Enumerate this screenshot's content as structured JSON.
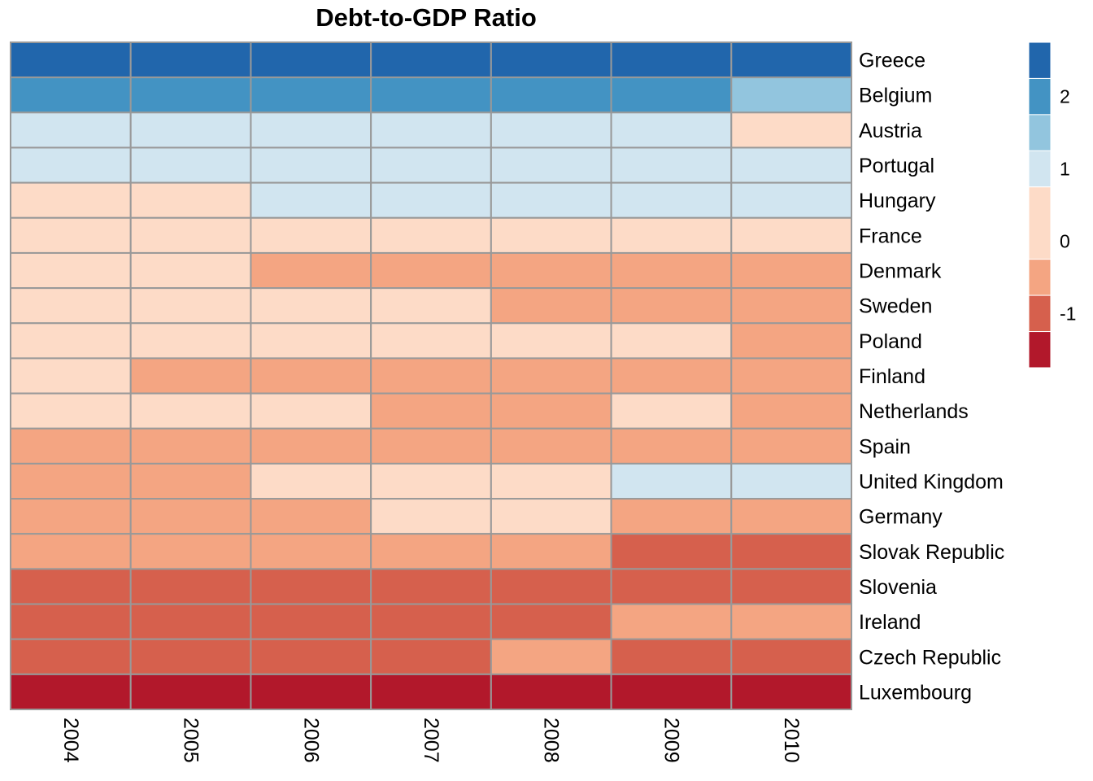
{
  "chart_data": {
    "type": "heatmap",
    "title": "Debt-to-GDP Ratio",
    "columns": [
      "2004",
      "2005",
      "2006",
      "2007",
      "2008",
      "2009",
      "2010"
    ],
    "rows": [
      "Greece",
      "Belgium",
      "Austria",
      "Portugal",
      "Hungary",
      "France",
      "Denmark",
      "Sweden",
      "Poland",
      "Finland",
      "Netherlands",
      "Spain",
      "United Kingdom",
      "Germany",
      "Slovak Republic",
      "Slovenia",
      "Ireland",
      "Czech Republic",
      "Luxembourg"
    ],
    "values": [
      [
        2.5,
        2.5,
        2.5,
        2.5,
        2.5,
        2.5,
        2.5
      ],
      [
        2.0,
        2.0,
        2.0,
        2.0,
        2.0,
        2.0,
        1.5
      ],
      [
        1.0,
        1.0,
        1.0,
        1.0,
        1.0,
        1.0,
        0.0
      ],
      [
        1.0,
        1.0,
        1.0,
        1.0,
        1.0,
        1.0,
        1.0
      ],
      [
        0.0,
        0.0,
        1.0,
        1.0,
        1.0,
        1.0,
        1.0
      ],
      [
        0.0,
        0.0,
        0.0,
        0.0,
        0.0,
        0.0,
        0.0
      ],
      [
        0.0,
        0.0,
        -0.5,
        -0.5,
        -0.5,
        -0.5,
        -0.5
      ],
      [
        0.0,
        0.0,
        0.0,
        0.0,
        -0.5,
        -0.5,
        -0.5
      ],
      [
        0.0,
        0.0,
        0.0,
        0.0,
        0.0,
        0.0,
        -0.5
      ],
      [
        0.0,
        -0.5,
        -0.5,
        -0.5,
        -0.5,
        -0.5,
        -0.5
      ],
      [
        0.0,
        0.0,
        0.0,
        -0.5,
        -0.5,
        0.0,
        -0.5
      ],
      [
        -0.5,
        -0.5,
        -0.5,
        -0.5,
        -0.5,
        -0.5,
        -0.5
      ],
      [
        -0.5,
        -0.5,
        0.0,
        0.0,
        0.0,
        1.0,
        1.0
      ],
      [
        -0.5,
        -0.5,
        -0.5,
        0.0,
        0.0,
        -0.5,
        -0.5
      ],
      [
        -0.5,
        -0.5,
        -0.5,
        -0.5,
        -0.5,
        -1.0,
        -1.0
      ],
      [
        -1.0,
        -1.0,
        -1.0,
        -1.0,
        -1.0,
        -1.0,
        -1.0
      ],
      [
        -1.0,
        -1.0,
        -1.0,
        -1.0,
        -1.0,
        -0.5,
        -0.5
      ],
      [
        -1.0,
        -1.0,
        -1.0,
        -1.0,
        -0.5,
        -1.0,
        -1.0
      ],
      [
        -1.5,
        -1.5,
        -1.5,
        -1.5,
        -1.5,
        -1.5,
        -1.5
      ]
    ],
    "color_scale": {
      "bins": [
        {
          "min": 2.25,
          "max": 2.75,
          "color": "#2166AC"
        },
        {
          "min": 1.75,
          "max": 2.25,
          "color": "#4393C3"
        },
        {
          "min": 1.25,
          "max": 1.75,
          "color": "#92C5DE"
        },
        {
          "min": 0.75,
          "max": 1.25,
          "color": "#D1E5F0"
        },
        {
          "min": -0.25,
          "max": 0.75,
          "color": "#FDDBC7"
        },
        {
          "min": -0.75,
          "max": -0.25,
          "color": "#F4A582"
        },
        {
          "min": -1.25,
          "max": -0.75,
          "color": "#D6604D"
        },
        {
          "min": -1.75,
          "max": -1.25,
          "color": "#B2182B"
        }
      ],
      "range": [
        -1.75,
        2.75
      ],
      "ticks": [
        2,
        1,
        0,
        -1
      ],
      "tick_labels": [
        "2",
        "1",
        "0",
        "-1"
      ]
    },
    "cell_border_color": "#999999",
    "legend": "right"
  }
}
